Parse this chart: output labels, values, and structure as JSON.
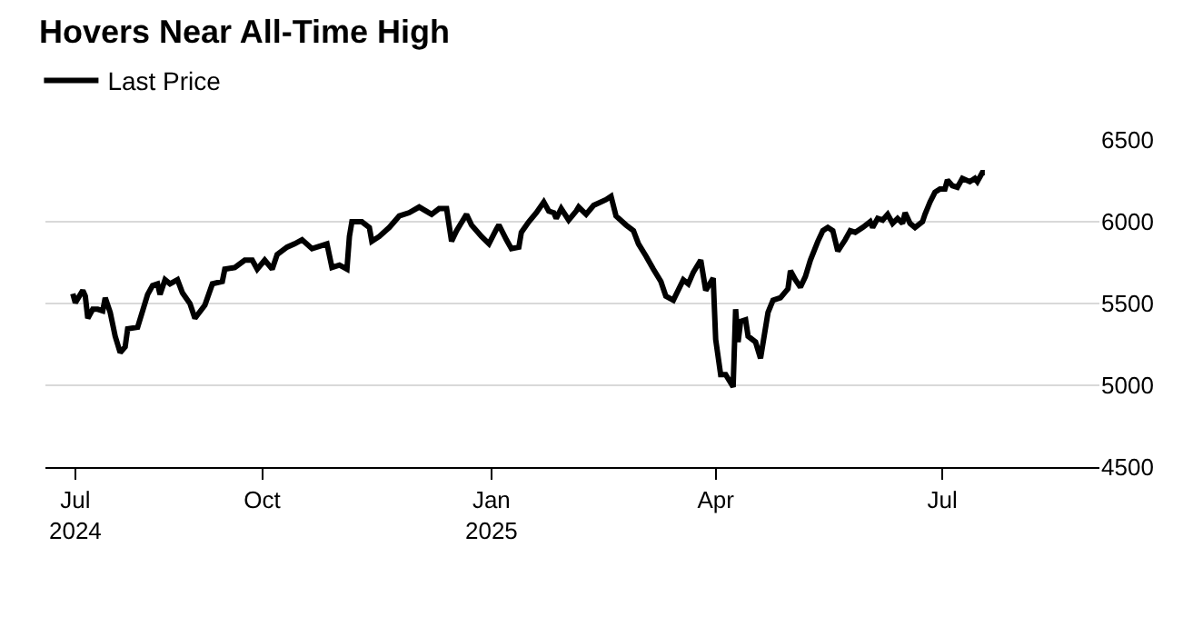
{
  "chart_data": {
    "type": "line",
    "title": "Hovers Near All-Time High",
    "x": [
      "2024-07-17",
      "2024-07-18",
      "2024-07-21",
      "2024-07-22",
      "2024-07-23",
      "2024-07-25",
      "2024-07-27",
      "2024-07-29",
      "2024-07-30",
      "2024-08-01",
      "2024-08-03",
      "2024-08-05",
      "2024-08-07",
      "2024-08-08",
      "2024-08-12",
      "2024-08-14",
      "2024-08-16",
      "2024-08-18",
      "2024-08-20",
      "2024-08-21",
      "2024-08-23",
      "2024-08-25",
      "2024-08-28",
      "2024-08-30",
      "2024-09-02",
      "2024-09-04",
      "2024-09-08",
      "2024-09-11",
      "2024-09-15",
      "2024-09-16",
      "2024-09-20",
      "2024-09-24",
      "2024-09-27",
      "2024-09-29",
      "2024-10-02",
      "2024-10-05",
      "2024-10-07",
      "2024-10-11",
      "2024-10-14",
      "2024-10-17",
      "2024-10-21",
      "2024-10-27",
      "2024-10-29",
      "2024-11-01",
      "2024-11-04",
      "2024-11-05",
      "2024-11-06",
      "2024-11-10",
      "2024-11-13",
      "2024-11-14",
      "2024-11-17",
      "2024-11-21",
      "2024-11-25",
      "2024-11-29",
      "2024-12-03",
      "2024-12-08",
      "2024-12-11",
      "2024-12-14",
      "2024-12-16",
      "2024-12-18",
      "2024-12-22",
      "2024-12-24",
      "2024-12-28",
      "2024-12-31",
      "2025-01-03",
      "2025-01-04",
      "2025-01-07",
      "2025-01-09",
      "2025-01-12",
      "2025-01-13",
      "2025-01-16",
      "2025-01-19",
      "2025-01-22",
      "2025-01-24",
      "2025-01-26",
      "2025-01-27",
      "2025-01-29",
      "2025-02-01",
      "2025-02-04",
      "2025-02-05",
      "2025-02-08",
      "2025-02-11",
      "2025-02-16",
      "2025-02-18",
      "2025-02-20",
      "2025-02-24",
      "2025-02-27",
      "2025-03-01",
      "2025-03-04",
      "2025-03-07",
      "2025-03-10",
      "2025-03-12",
      "2025-03-15",
      "2025-03-19",
      "2025-03-21",
      "2025-03-23",
      "2025-03-26",
      "2025-03-28",
      "2025-03-31",
      "2025-04-01",
      "2025-04-03",
      "2025-04-05",
      "2025-04-08",
      "2025-04-09",
      "2025-04-10",
      "2025-04-11",
      "2025-04-13",
      "2025-04-14",
      "2025-04-17",
      "2025-04-19",
      "2025-04-22",
      "2025-04-24",
      "2025-04-27",
      "2025-04-30",
      "2025-05-01",
      "2025-05-03",
      "2025-05-05",
      "2025-05-07",
      "2025-05-09",
      "2025-05-12",
      "2025-05-14",
      "2025-05-16",
      "2025-05-18",
      "2025-05-20",
      "2025-05-23",
      "2025-05-25",
      "2025-05-27",
      "2025-05-30",
      "2025-06-02",
      "2025-06-03",
      "2025-06-05",
      "2025-06-07",
      "2025-06-09",
      "2025-06-11",
      "2025-06-13",
      "2025-06-15",
      "2025-06-16",
      "2025-06-18",
      "2025-06-20",
      "2025-06-23",
      "2025-06-24",
      "2025-06-26",
      "2025-06-28",
      "2025-06-30",
      "2025-07-02",
      "2025-07-03",
      "2025-07-05",
      "2025-07-07",
      "2025-07-09",
      "2025-07-12",
      "2025-07-14",
      "2025-07-15",
      "2025-07-17",
      "2025-07-18"
    ],
    "series": [
      {
        "name": "Last Price",
        "color": "#000000",
        "values": [
          5560,
          5505,
          5580,
          5545,
          5410,
          5465,
          5465,
          5455,
          5535,
          5445,
          5300,
          5200,
          5235,
          5345,
          5355,
          5455,
          5555,
          5610,
          5620,
          5555,
          5645,
          5620,
          5645,
          5565,
          5500,
          5410,
          5490,
          5620,
          5635,
          5710,
          5720,
          5765,
          5765,
          5710,
          5765,
          5710,
          5800,
          5845,
          5865,
          5890,
          5835,
          5865,
          5720,
          5735,
          5710,
          5910,
          6000,
          6000,
          5965,
          5880,
          5910,
          5965,
          6035,
          6055,
          6090,
          6045,
          6080,
          6080,
          5880,
          5945,
          6045,
          5980,
          5910,
          5865,
          5955,
          5980,
          5890,
          5835,
          5845,
          5935,
          6000,
          6055,
          6120,
          6065,
          6055,
          6020,
          6080,
          6010,
          6065,
          6090,
          6045,
          6100,
          6135,
          6155,
          6035,
          5980,
          5945,
          5865,
          5790,
          5710,
          5635,
          5545,
          5520,
          5645,
          5620,
          5690,
          5765,
          5580,
          5655,
          5280,
          5065,
          5065,
          4990,
          5465,
          5265,
          5390,
          5400,
          5300,
          5265,
          5165,
          5445,
          5520,
          5535,
          5590,
          5700,
          5645,
          5600,
          5665,
          5765,
          5880,
          5945,
          5965,
          5945,
          5820,
          5890,
          5945,
          5935,
          5965,
          6000,
          5965,
          6020,
          6010,
          6045,
          5990,
          6020,
          5990,
          6055,
          5990,
          5965,
          6000,
          6045,
          6120,
          6180,
          6200,
          6200,
          6255,
          6220,
          6210,
          6265,
          6245,
          6265,
          6245,
          6300,
          6300
        ]
      }
    ],
    "xlim": [
      "2024-07-06",
      "2025-09-02"
    ],
    "xticks": [
      {
        "value": "2024-07-18",
        "label": "Jul\n2024"
      },
      {
        "value": "2024-10-01",
        "label": "Oct"
      },
      {
        "value": "2025-01-01",
        "label": "Jan\n2025"
      },
      {
        "value": "2025-04-01",
        "label": "Apr"
      },
      {
        "value": "2025-07-01",
        "label": "Jul"
      }
    ],
    "ylim": [
      4500,
      6500
    ],
    "yticks": [
      4500,
      5000,
      5500,
      6000,
      6500
    ],
    "grid": "y",
    "legend": "top left",
    "marker": "none",
    "line_style": "solid"
  }
}
